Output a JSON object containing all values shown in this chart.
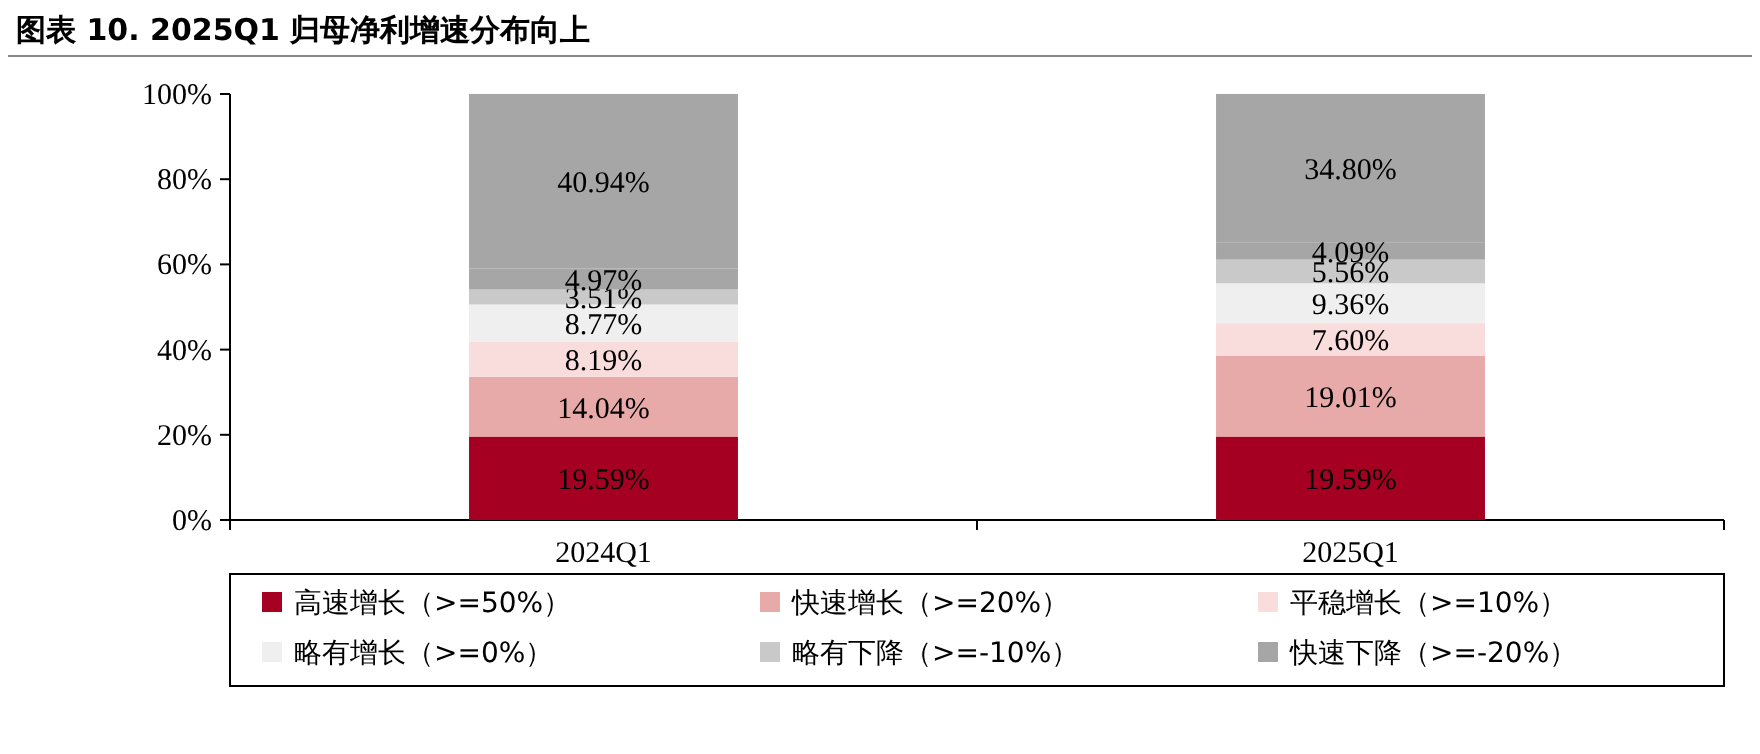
{
  "chart_data": {
    "type": "bar",
    "stacked": true,
    "title": "图表 10. 2025Q1 归母净利增速分布向上",
    "categories": [
      "2024Q1",
      "2025Q1"
    ],
    "series": [
      {
        "name": "高速增长（>=50%）",
        "color": "#a50021",
        "values": [
          19.59,
          19.59
        ],
        "value_labels": [
          "19.59%",
          "19.59%"
        ]
      },
      {
        "name": "快速增长（>=20%）",
        "color": "#e8a9a9",
        "values": [
          14.04,
          19.01
        ],
        "value_labels": [
          "14.04%",
          "19.01%"
        ]
      },
      {
        "name": "平稳增长（>=10%）",
        "color": "#f9dcdc",
        "values": [
          8.19,
          7.6
        ],
        "value_labels": [
          "8.19%",
          "7.60%"
        ]
      },
      {
        "name": "略有增长（>=0%）",
        "color": "#efefef",
        "values": [
          8.77,
          9.36
        ],
        "value_labels": [
          "8.77%",
          "9.36%"
        ]
      },
      {
        "name": "略有下降（>=-10%）",
        "color": "#c9c9c9",
        "values": [
          3.51,
          5.56
        ],
        "value_labels": [
          "3.51%",
          "5.56%"
        ]
      },
      {
        "name": "快速下降（>=-20%）",
        "color": "#a6a6a6",
        "values": [
          4.97,
          4.09
        ],
        "value_labels": [
          "4.97%",
          "4.09%"
        ]
      },
      {
        "color": "#a6a6a6",
        "values": [
          40.94,
          34.8
        ],
        "value_labels": [
          "40.94%",
          "34.80%"
        ]
      }
    ],
    "ylim": [
      0,
      100
    ],
    "yticks": [
      {
        "value": 0,
        "label": "0%"
      },
      {
        "value": 20,
        "label": "20%"
      },
      {
        "value": 40,
        "label": "40%"
      },
      {
        "value": 60,
        "label": "60%"
      },
      {
        "value": 80,
        "label": "80%"
      },
      {
        "value": 100,
        "label": "100%"
      }
    ],
    "legend": "bottom",
    "grid": false
  }
}
